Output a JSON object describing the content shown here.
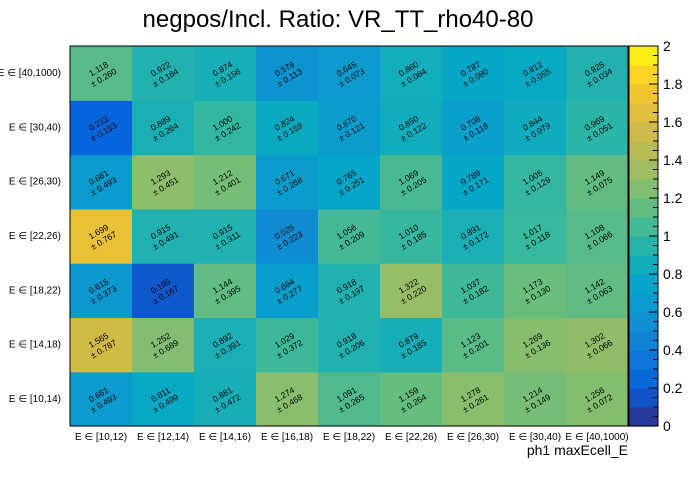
{
  "chart_data": {
    "type": "heatmap",
    "title": "negpos/Incl. Ratio: VR_TT_rho40-80",
    "xlabel": "ph1 maxEcell_E",
    "ylabel": "",
    "x_categories": [
      "E ∈ [10,12)",
      "E ∈ [12,14)",
      "E ∈ [14,16)",
      "E ∈ [16,18)",
      "E ∈ [18,22)",
      "E ∈ [22,26)",
      "E ∈ [26,30)",
      "E ∈ [30,40)",
      "E ∈ [40,1000)"
    ],
    "y_categories": [
      "E ∈ [10,14)",
      "E ∈ [14,18)",
      "E ∈ [18,22)",
      "E ∈ [22,26)",
      "E ∈ [26,30)",
      "E ∈ [30,40)",
      "E ∈ [40,1000)"
    ],
    "values": [
      [
        0.661,
        0.811,
        0.881,
        1.274,
        1.091,
        1.159,
        1.278,
        1.214,
        1.256
      ],
      [
        1.565,
        1.252,
        0.892,
        1.029,
        0.918,
        0.879,
        1.123,
        1.269,
        1.302
      ],
      [
        0.615,
        0.165,
        1.144,
        0.694,
        0.918,
        1.322,
        1.037,
        1.173,
        1.142
      ],
      [
        1.699,
        0.915,
        0.915,
        0.525,
        1.056,
        1.01,
        0.891,
        1.017,
        1.108
      ],
      [
        0.661,
        1.293,
        1.212,
        0.671,
        0.765,
        1.069,
        0.789,
        1.005,
        1.149
      ],
      [
        0.212,
        0.889,
        1.0,
        0.824,
        0.67,
        0.85,
        0.708,
        0.844,
        0.969
      ],
      [
        1.118,
        0.922,
        0.874,
        0.579,
        0.645,
        0.86,
        0.787,
        0.812,
        0.925
      ]
    ],
    "errors": [
      [
        0.493,
        0.499,
        0.472,
        0.468,
        0.265,
        0.264,
        0.261,
        0.149,
        0.072
      ],
      [
        0.787,
        0.689,
        0.391,
        0.372,
        0.206,
        0.185,
        0.201,
        0.136,
        0.066
      ],
      [
        0.373,
        0.167,
        0.395,
        0.277,
        0.197,
        0.22,
        0.182,
        0.13,
        0.063
      ],
      [
        0.767,
        0.491,
        0.311,
        0.223,
        0.209,
        0.185,
        0.172,
        0.118,
        0.066
      ],
      [
        0.493,
        0.451,
        0.401,
        0.268,
        0.251,
        0.205,
        0.171,
        0.129,
        0.075
      ],
      [
        0.153,
        0.264,
        0.242,
        0.159,
        0.121,
        0.122,
        0.118,
        0.079,
        0.051
      ],
      [
        0.26,
        0.184,
        0.156,
        0.113,
        0.073,
        0.084,
        0.08,
        0.055,
        0.034
      ]
    ],
    "zlim": [
      0,
      2
    ],
    "colorbar_ticks": [
      "0",
      "0.2",
      "0.4",
      "0.6",
      "0.8",
      "1",
      "1.2",
      "1.4",
      "1.6",
      "1.8",
      "2"
    ],
    "colormap": "parula",
    "grid": false
  }
}
